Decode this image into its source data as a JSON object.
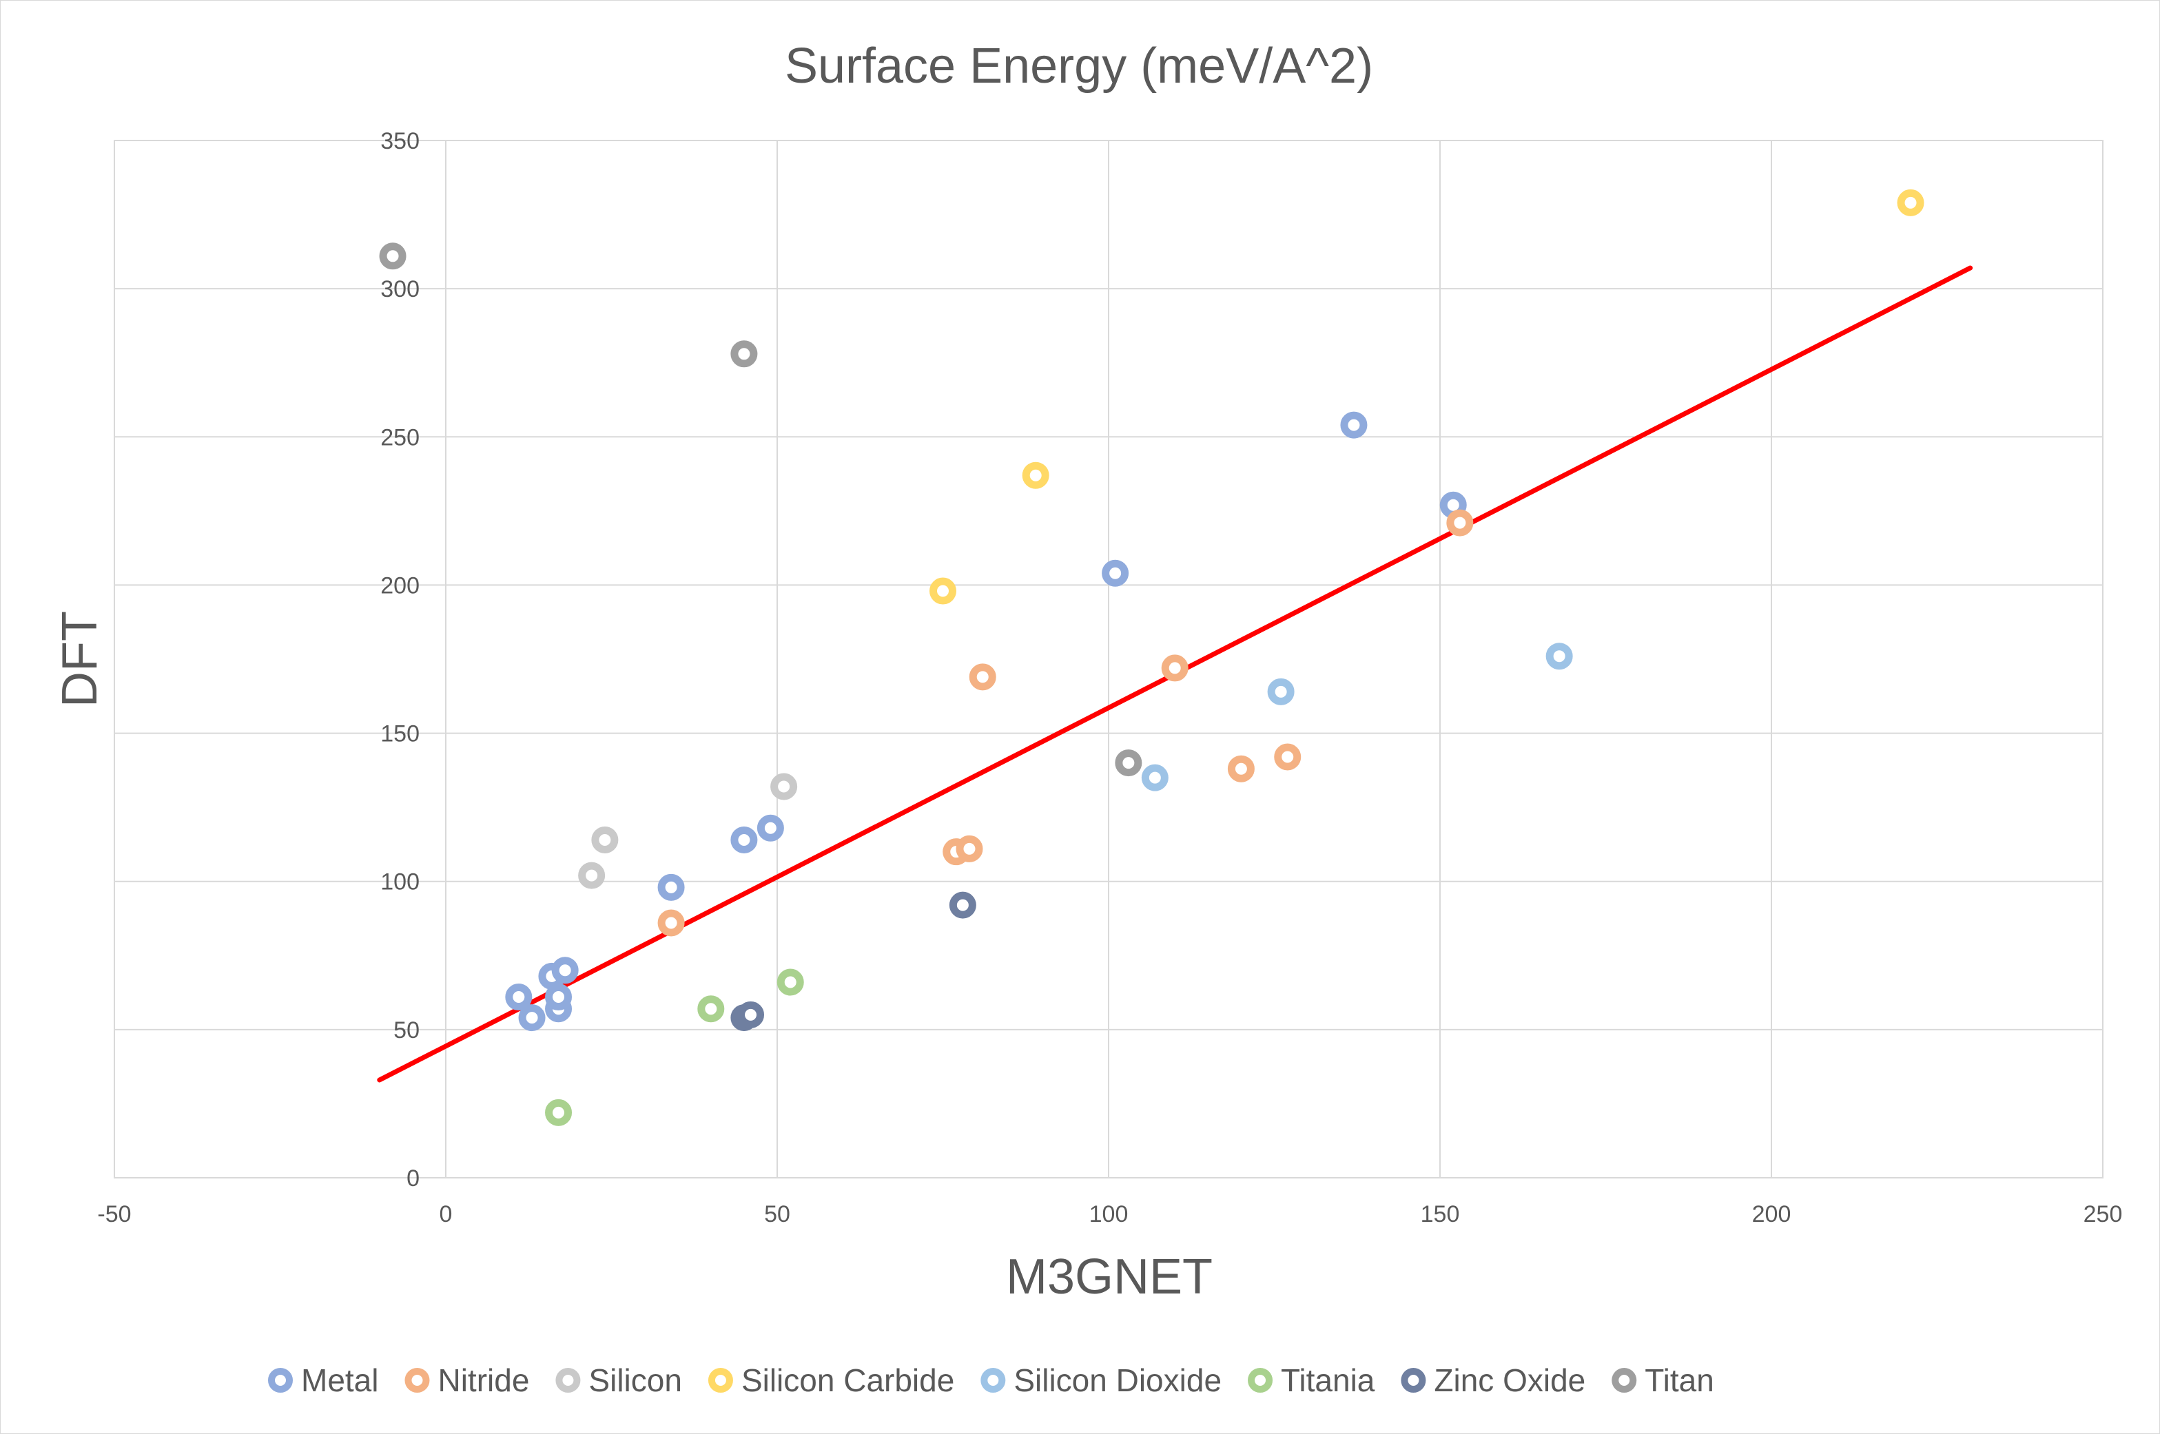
{
  "chart_data": {
    "type": "scatter",
    "title": "Surface Energy (meV/A^2)",
    "xlabel": "M3GNET",
    "ylabel": "DFT",
    "xlim": [
      -50,
      250
    ],
    "ylim": [
      0,
      350
    ],
    "xticks": [
      -50,
      0,
      50,
      100,
      150,
      200,
      250
    ],
    "yticks": [
      0,
      50,
      100,
      150,
      200,
      250,
      300,
      350
    ],
    "grid": true,
    "legend_position": "bottom",
    "trendline": {
      "name": "Linear fit",
      "color": "#ff0000",
      "x": [
        -10,
        230
      ],
      "y": [
        33,
        307
      ]
    },
    "series": [
      {
        "name": "Metal",
        "color": "#8faadc",
        "points": [
          [
            11,
            61
          ],
          [
            13,
            54
          ],
          [
            16,
            68
          ],
          [
            17,
            57
          ],
          [
            17,
            61
          ],
          [
            18,
            70
          ],
          [
            34,
            98
          ],
          [
            45,
            114
          ],
          [
            49,
            118
          ],
          [
            101,
            204
          ],
          [
            137,
            254
          ],
          [
            152,
            227
          ]
        ]
      },
      {
        "name": "Nitride",
        "color": "#f4b183",
        "points": [
          [
            34,
            86
          ],
          [
            77,
            110
          ],
          [
            79,
            111
          ],
          [
            81,
            169
          ],
          [
            110,
            172
          ],
          [
            120,
            138
          ],
          [
            127,
            142
          ],
          [
            153,
            221
          ]
        ]
      },
      {
        "name": "Silicon",
        "color": "#c9c9c9",
        "points": [
          [
            22,
            102
          ],
          [
            24,
            114
          ],
          [
            51,
            132
          ]
        ]
      },
      {
        "name": "Silicon Carbide",
        "color": "#ffd966",
        "points": [
          [
            75,
            198
          ],
          [
            89,
            237
          ],
          [
            221,
            329
          ]
        ]
      },
      {
        "name": "Silicon Dioxide",
        "color": "#9dc3e6",
        "points": [
          [
            107,
            135
          ],
          [
            126,
            164
          ],
          [
            168,
            176
          ]
        ]
      },
      {
        "name": "Titania",
        "color": "#a9d18e",
        "points": [
          [
            17,
            22
          ],
          [
            40,
            57
          ],
          [
            52,
            66
          ]
        ]
      },
      {
        "name": "Zinc Oxide",
        "color": "#6f7fa0",
        "points": [
          [
            45,
            54
          ],
          [
            46,
            55
          ],
          [
            78,
            92
          ]
        ]
      },
      {
        "name": "Titan",
        "color": "#9e9e9e",
        "points": [
          [
            -8,
            311
          ],
          [
            45,
            278
          ],
          [
            103,
            140
          ]
        ]
      }
    ]
  }
}
